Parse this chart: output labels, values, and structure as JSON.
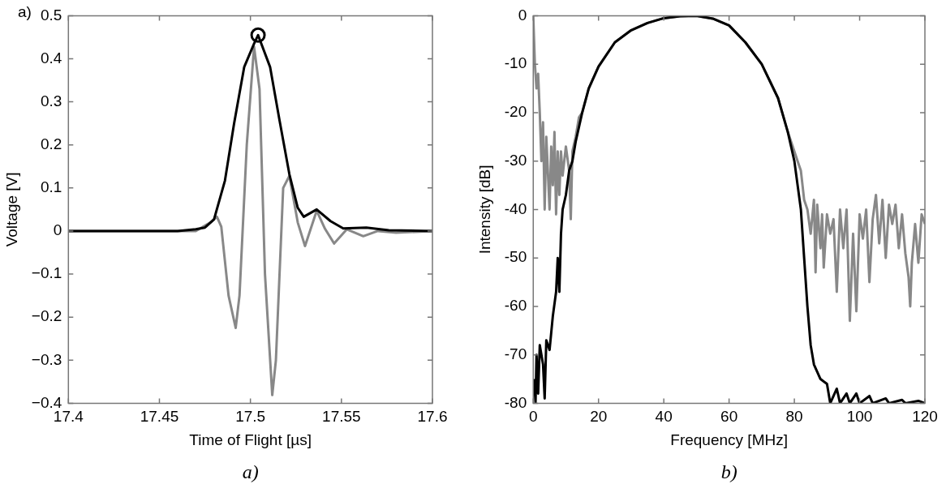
{
  "chart_data": [
    {
      "type": "line",
      "xlabel": "Time of Flight [µs]",
      "ylabel": "Voltage [V]",
      "annotations": [
        "a)",
        "a)"
      ],
      "xlim": [
        17.4,
        17.6
      ],
      "xticks": [
        17.4,
        17.45,
        17.5,
        17.55,
        17.6
      ],
      "ylim": [
        -0.4,
        0.5
      ],
      "yticks": [
        {
          "value": -0.4,
          "label": "−0.4"
        },
        {
          "value": -0.3,
          "label": "−0.3"
        },
        {
          "value": -0.2,
          "label": "−0.2"
        },
        {
          "value": -0.1,
          "label": "−0.1"
        },
        0,
        0.1,
        0.2,
        0.3,
        0.4,
        0.5
      ],
      "grid": false,
      "legend": false,
      "marker": "none",
      "line_style": "solid",
      "series": [
        {
          "color": "#888888",
          "x": [
            17.4,
            17.42,
            17.44,
            17.46,
            17.47,
            17.478,
            17.4816,
            17.484,
            17.488,
            17.4919,
            17.494,
            17.498,
            17.502,
            17.505,
            17.508,
            17.512,
            17.514,
            17.518,
            17.5214,
            17.526,
            17.53,
            17.5364,
            17.541,
            17.546,
            17.553,
            17.562,
            17.57,
            17.58,
            17.6
          ],
          "values": [
            0,
            0,
            0,
            0,
            0,
            0.02,
            0.033,
            0.01,
            -0.15,
            -0.225,
            -0.15,
            0.2,
            0.428,
            0.33,
            -0.1,
            -0.381,
            -0.3,
            0.1,
            0.128,
            0.02,
            -0.035,
            0.047,
            0.005,
            -0.029,
            0.004,
            -0.012,
            0,
            -0.004,
            0
          ]
        },
        {
          "color": "#000000",
          "x": [
            17.4,
            17.43,
            17.46,
            17.47,
            17.475,
            17.48,
            17.486,
            17.491,
            17.4966,
            17.502,
            17.5042,
            17.5108,
            17.516,
            17.5214,
            17.526,
            17.5293,
            17.5364,
            17.544,
            17.551,
            17.5637,
            17.576,
            17.6
          ],
          "values": [
            0,
            0,
            0,
            0.004,
            0.008,
            0.027,
            0.117,
            0.249,
            0.381,
            0.435,
            0.455,
            0.381,
            0.257,
            0.132,
            0.054,
            0.033,
            0.05,
            0.023,
            0.006,
            0.008,
            0.002,
            0
          ]
        },
        {
          "type": "scatter",
          "color": "#000000",
          "marker": "circle",
          "x": [
            17.5042
          ],
          "values": [
            0.455
          ]
        }
      ]
    },
    {
      "type": "line",
      "xlabel": "Frequency [MHz]",
      "ylabel": "Intensity [dB]",
      "annotations": [
        "b)"
      ],
      "xlim": [
        0,
        120
      ],
      "xticks": [
        0,
        20,
        40,
        60,
        80,
        100,
        120
      ],
      "ylim": [
        -80,
        0
      ],
      "yticks": [
        -80,
        -70,
        -60,
        -50,
        -40,
        -30,
        -20,
        -10,
        0
      ],
      "grid": false,
      "legend": false,
      "marker": "none",
      "line_style": "solid",
      "series": [
        {
          "color": "#888888",
          "x": [
            0,
            0.5,
            1,
            1.5,
            2,
            2.5,
            3,
            3.5,
            4,
            5,
            5.5,
            6,
            6.5,
            7,
            7.5,
            8,
            8.5,
            9,
            10,
            11,
            11.5,
            12,
            13,
            14,
            15,
            17,
            20,
            25,
            30,
            35,
            40,
            45,
            50,
            55,
            60,
            65,
            70,
            75,
            78,
            80,
            81,
            82,
            83,
            84,
            85,
            86,
            86.5,
            87,
            88,
            88.5,
            89,
            90,
            91,
            92,
            93,
            94,
            95,
            96,
            97,
            98,
            99,
            100,
            101,
            102,
            103,
            104,
            105,
            106,
            107,
            108,
            109,
            110,
            111,
            112,
            113,
            114,
            115,
            115.5,
            116,
            117,
            118,
            119,
            120
          ],
          "values": [
            0,
            -10,
            -15,
            -12,
            -20,
            -30,
            -22,
            -40,
            -25,
            -40,
            -27,
            -35,
            -24,
            -41,
            -28,
            -37,
            -28,
            -33,
            -27,
            -32,
            -42,
            -28,
            -25,
            -21,
            -20,
            -15,
            -10.5,
            -5.5,
            -3,
            -1.5,
            -0.5,
            -0.1,
            0,
            -0.6,
            -2,
            -5.5,
            -10,
            -17,
            -24,
            -28,
            -30,
            -32,
            -38,
            -40,
            -45,
            -38,
            -53,
            -39,
            -48,
            -41,
            -52,
            -41,
            -45,
            -42,
            -57,
            -40,
            -48,
            -40,
            -63,
            -45,
            -61,
            -41,
            -46,
            -40,
            -55,
            -42,
            -37,
            -47,
            -38,
            -50,
            -39,
            -43,
            -39,
            -48,
            -41,
            -49,
            -54,
            -60,
            -51,
            -43,
            -51,
            -41,
            -43
          ]
        },
        {
          "color": "#000000",
          "x": [
            0.3,
            0.7,
            1,
            1.5,
            2,
            3,
            3.5,
            4,
            5,
            6,
            7,
            7.5,
            8,
            8.5,
            9,
            10,
            11,
            12,
            13,
            15,
            17,
            20,
            25,
            30,
            35,
            40,
            45,
            50,
            55,
            60,
            65,
            70,
            75,
            78,
            80,
            82,
            83,
            84,
            85,
            86,
            88,
            90,
            91,
            93,
            94,
            96,
            97,
            99,
            100,
            103,
            104,
            108,
            109,
            113,
            114,
            118,
            120
          ],
          "values": [
            -75,
            -80,
            -70,
            -78,
            -68,
            -72,
            -79,
            -67,
            -69,
            -62,
            -57,
            -50,
            -57,
            -45,
            -40,
            -37,
            -32,
            -30,
            -26,
            -20,
            -15,
            -10.5,
            -5.5,
            -3,
            -1.5,
            -0.5,
            -0.1,
            0,
            -0.6,
            -2,
            -5.5,
            -10,
            -17,
            -24,
            -30,
            -40,
            -50,
            -60,
            -68,
            -72,
            -75,
            -76,
            -80,
            -77,
            -80,
            -78,
            -80,
            -78,
            -80,
            -78.5,
            -80,
            -79,
            -80,
            -79.3,
            -80,
            -79.5,
            -80
          ]
        }
      ]
    }
  ]
}
